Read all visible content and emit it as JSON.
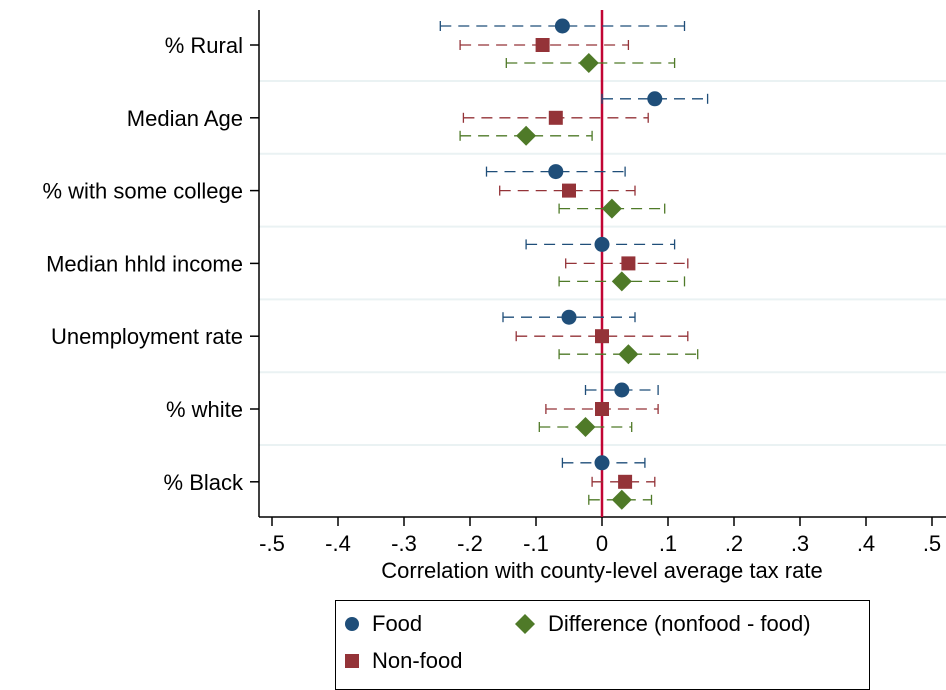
{
  "chart_data": {
    "type": "scatter",
    "orientation": "horizontal",
    "variant": "coefficient plot with confidence intervals",
    "xlabel": "Correlation with county-level average tax rate",
    "x_ticks": [
      "-.5",
      "-.4",
      "-.3",
      "-.2",
      "-.1",
      "0",
      ".1",
      ".2",
      ".3",
      ".4",
      ".5"
    ],
    "x_tick_values": [
      -0.5,
      -0.4,
      -0.3,
      -0.2,
      -0.1,
      0,
      0.1,
      0.2,
      0.3,
      0.4,
      0.5
    ],
    "xlim": [
      -0.5,
      0.5
    ],
    "reference_line": 0,
    "grid": "horizontal separators between categories",
    "legend_position": "bottom",
    "categories": [
      "% Rural",
      "Median Age",
      "% with some college",
      "Median hhld income",
      "Unemployment rate",
      "% white",
      "% Black"
    ],
    "series": [
      {
        "name": "Food",
        "marker": "circle",
        "color": "#1f4e79",
        "values": [
          -0.06,
          0.08,
          -0.07,
          0.0,
          -0.05,
          0.03,
          0.0
        ],
        "ci_low": [
          -0.245,
          0.0,
          -0.175,
          -0.115,
          -0.15,
          -0.025,
          -0.06
        ],
        "ci_high": [
          0.125,
          0.16,
          0.035,
          0.11,
          0.05,
          0.085,
          0.065
        ]
      },
      {
        "name": "Non-food",
        "marker": "square",
        "color": "#943338",
        "values": [
          -0.09,
          -0.07,
          -0.05,
          0.04,
          0.0,
          0.0,
          0.035
        ],
        "ci_low": [
          -0.215,
          -0.21,
          -0.155,
          -0.055,
          -0.13,
          -0.085,
          -0.015
        ],
        "ci_high": [
          0.04,
          0.07,
          0.05,
          0.13,
          0.13,
          0.085,
          0.08
        ]
      },
      {
        "name": "Difference (nonfood - food)",
        "marker": "diamond",
        "color": "#4f7a28",
        "values": [
          -0.02,
          -0.115,
          0.015,
          0.03,
          0.04,
          -0.025,
          0.03
        ],
        "ci_low": [
          -0.145,
          -0.215,
          -0.065,
          -0.065,
          -0.065,
          -0.095,
          -0.02
        ],
        "ci_high": [
          0.11,
          -0.015,
          0.095,
          0.125,
          0.145,
          0.045,
          0.075
        ]
      }
    ]
  },
  "colors": {
    "reference_line": "#c10534",
    "separator": "#eaf2f3"
  },
  "legend": {
    "items": [
      "Food",
      "Non-food",
      "Difference (nonfood - food)"
    ]
  }
}
